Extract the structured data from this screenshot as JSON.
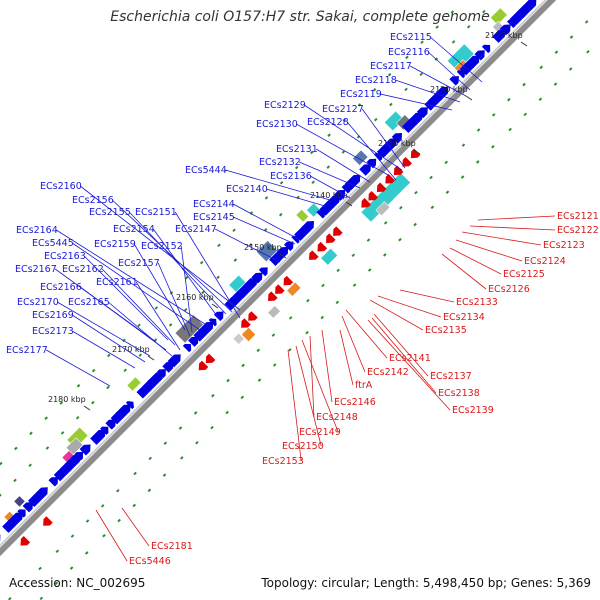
{
  "title": "Escherichia coli O157:H7 str. Sakai, complete genome",
  "accession": "Accession: NC_002695",
  "topology": "Topology: circular; Length: 5,498,450 bp; Genes: 5,369",
  "colors": {
    "backbone": "#8c8c8c",
    "forward_gene": "#0000e0",
    "reverse_gene": "#e00000",
    "forward_label": "#1a1ad6",
    "reverse_label": "#d81a1a",
    "gc_tick": "#2e8b2e",
    "feature_cyan": "#33cccc",
    "feature_slate": "#5577aa",
    "feature_gray": "#777777",
    "feature_lime": "#99cc33",
    "feature_orange": "#ee8822",
    "feature_pink": "#ee3399"
  },
  "kbp_ticks": [
    {
      "text": "2110 kbp"
    },
    {
      "text": "2120 kbp"
    },
    {
      "text": "2130 kbp"
    },
    {
      "text": "2140 kbp"
    },
    {
      "text": "2150 kbp"
    },
    {
      "text": "2160 kbp"
    },
    {
      "text": "2170 kbp"
    },
    {
      "text": "2180 kbp"
    }
  ],
  "forward_labels": [
    "ECs2115",
    "ECs2116",
    "ECs2117",
    "ECs2118",
    "ECs2119",
    "ECs2129",
    "ECs2127",
    "ECs2130",
    "ECs2128",
    "ECs2131",
    "ECs2132",
    "ECs2136",
    "ECs5444",
    "ECs2140",
    "ECs2160",
    "ECs2156",
    "ECs2155",
    "ECs2151",
    "ECs2144",
    "ECs2145",
    "ECs2154",
    "ECs2164",
    "ECs5445",
    "ECs2159",
    "ECs2152",
    "ECs2147",
    "ECs2163",
    "ECs2167",
    "ECs2162",
    "ECs2157",
    "ECs2166",
    "ECs2161",
    "ECs2170",
    "ECs2165",
    "ECs2169",
    "ECs2173",
    "ECs2177"
  ],
  "reverse_labels": [
    "ECs2121",
    "ECs2122",
    "ECs2123",
    "ECs2124",
    "ECs2125",
    "ECs2126",
    "ECs2133",
    "ECs2134",
    "ECs2135",
    "ECs2141",
    "ECs2142",
    "ECs2137",
    "ECs2138",
    "ECs2139",
    "ftrA",
    "ECs2146",
    "ECs2148",
    "ECs2149",
    "ECs2150",
    "ECs2153",
    "ECs2181",
    "ECs5446"
  ]
}
